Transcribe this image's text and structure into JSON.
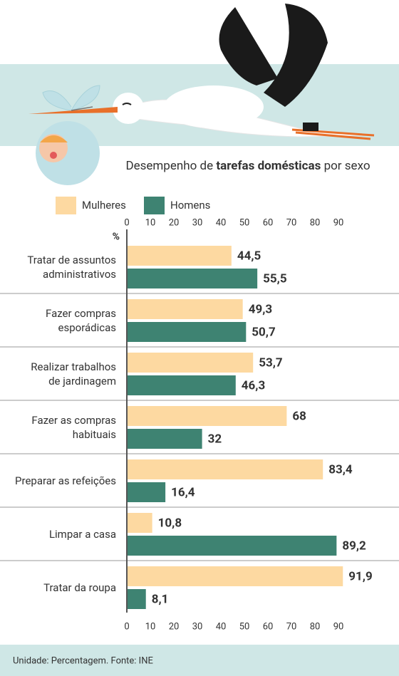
{
  "chart_data": {
    "type": "hbar",
    "title": [
      "Desempenho de",
      "tarefas domésticas",
      "por sexo"
    ],
    "unit_label": "%",
    "categories": [
      "Tratar de assuntos\nadministrativos",
      "Fazer compras\nesporádicas",
      "Realizar trabalhos\nde jardinagem",
      "Fazer as compras\nhabituais",
      "Preparar as refeições",
      "Limpar a casa",
      "Tratar da roupa"
    ],
    "series": [
      {
        "name": "Mulheres",
        "color": "#fdd9a1",
        "values": [
          44.5,
          49.3,
          53.7,
          68,
          83.4,
          10.8,
          91.9
        ],
        "value_labels": [
          "44,5",
          "49,3",
          "53,7",
          "68",
          "83,4",
          "10,8",
          "91,9"
        ]
      },
      {
        "name": "Homens",
        "color": "#3e8372",
        "values": [
          55.5,
          50.7,
          46.3,
          32,
          16.4,
          89.2,
          8.1
        ],
        "value_labels": [
          "55,5",
          "50,7",
          "46,3",
          "32",
          "16,4",
          "89,2",
          "8,1"
        ]
      }
    ],
    "xlim": [
      0,
      90
    ],
    "xticks": [
      0,
      10,
      20,
      30,
      40,
      50,
      60,
      70,
      80,
      90
    ],
    "footer": "Unidade: Percentagem. Fonte: INE"
  }
}
